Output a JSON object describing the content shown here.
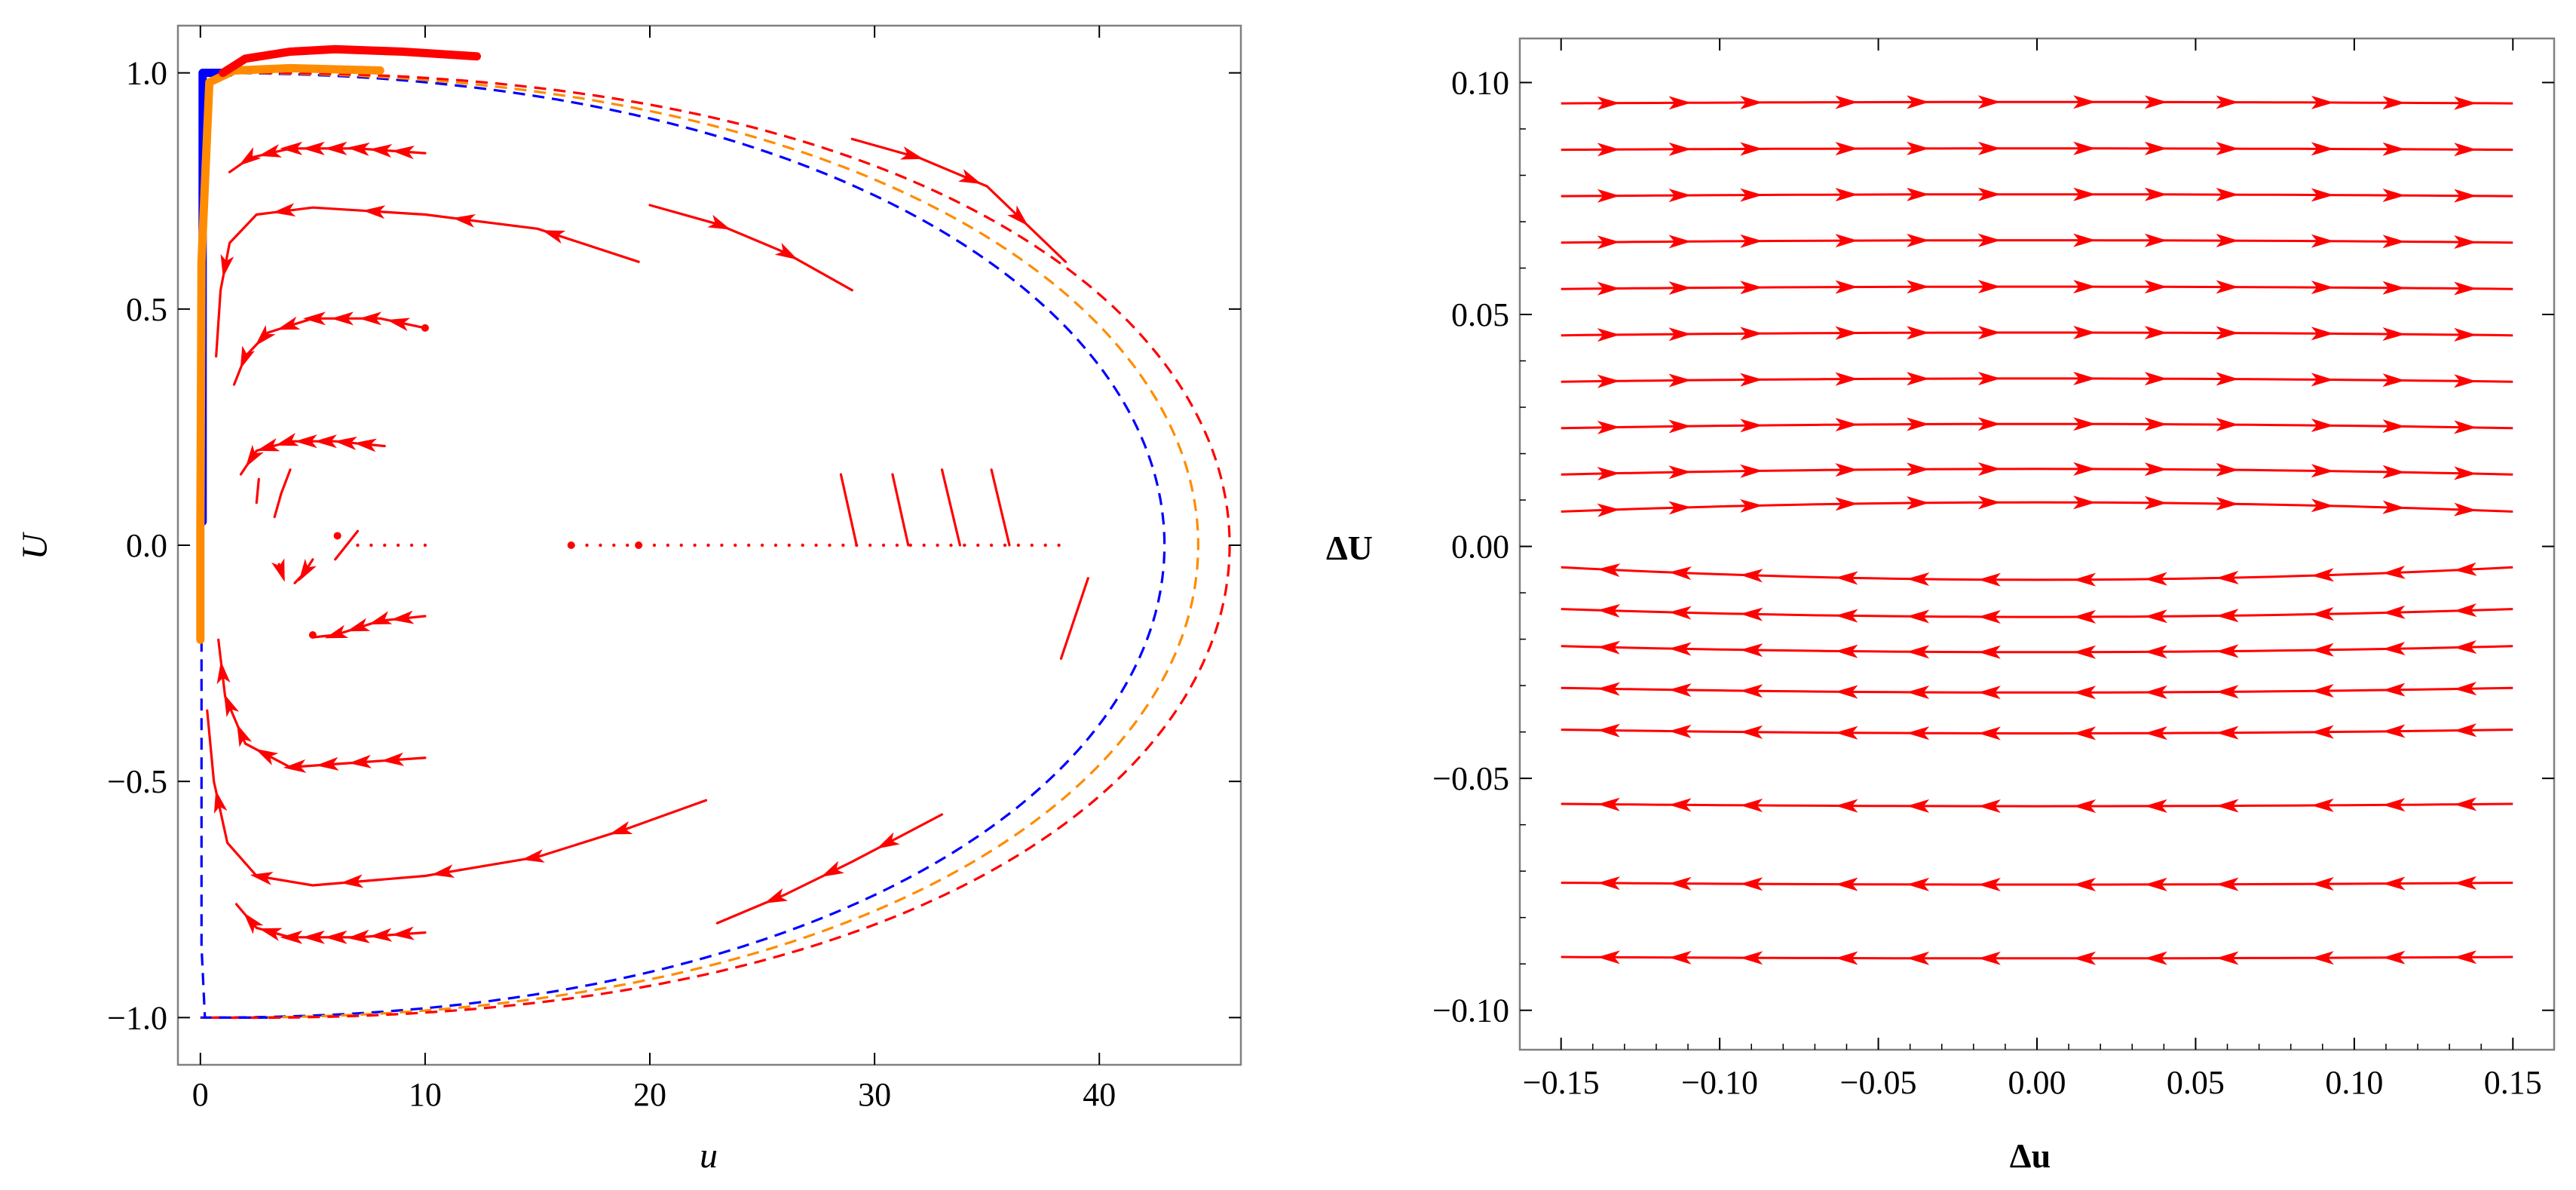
{
  "colors": {
    "trajectory": "#ff0000",
    "blue_boundary": "#0000ff",
    "orange_boundary": "#ff8c00",
    "frame": "#808080",
    "background": "#ffffff"
  },
  "chart_data": [
    {
      "id": "left",
      "type": "line",
      "title": "",
      "xlabel": "u",
      "ylabel": "U",
      "xlim": [
        -1,
        46.3
      ],
      "ylim": [
        -1.1,
        1.1
      ],
      "xticks": [
        0,
        10,
        20,
        30,
        40
      ],
      "xtick_labels": [
        "0",
        "10",
        "20",
        "30",
        "40"
      ],
      "yticks": [
        -1.0,
        -0.5,
        0.0,
        0.5,
        1.0
      ],
      "ytick_labels": [
        "−1.0",
        "−0.5",
        "0.0",
        "0.5",
        "1.0"
      ],
      "dashed_boundaries": [
        {
          "name": "blue",
          "color": "#0000ff",
          "u_max": 42.9,
          "dip": 0.0
        },
        {
          "name": "orange",
          "color": "#ff8c00",
          "u_max": 44.4,
          "dip": 0.025
        },
        {
          "name": "red",
          "color": "#ff0000",
          "u_max": 45.8,
          "dip": 0.05
        }
      ],
      "thick_curves": [
        {
          "name": "blue-vertical",
          "color": "#0000ff",
          "points": [
            [
              0.1,
              0.05
            ],
            [
              0.1,
              1.0
            ],
            [
              1.3,
              1.0
            ]
          ]
        },
        {
          "name": "orange-edge",
          "color": "#ff8c00",
          "points": [
            [
              0.0,
              -0.2
            ],
            [
              0.0,
              0.03
            ],
            [
              0.05,
              0.6
            ],
            [
              0.4,
              0.98
            ],
            [
              1.5,
              1.005
            ],
            [
              4,
              1.01
            ],
            [
              8,
              1.005
            ]
          ]
        },
        {
          "name": "red-top",
          "color": "#ff0000",
          "points": [
            [
              1,
              1.0
            ],
            [
              2,
              1.03
            ],
            [
              4,
              1.045
            ],
            [
              6,
              1.05
            ],
            [
              9,
              1.045
            ],
            [
              12.3,
              1.035
            ]
          ]
        }
      ],
      "trajectories": [
        {
          "points": [
            [
              10,
              0.83
            ],
            [
              7,
              0.84
            ],
            [
              4,
              0.84
            ],
            [
              2.2,
              0.82
            ],
            [
              1.3,
              0.79
            ]
          ],
          "arrows": 8
        },
        {
          "points": [
            [
              19.5,
              0.6
            ],
            [
              15,
              0.67
            ],
            [
              10,
              0.7
            ],
            [
              5,
              0.715
            ],
            [
              2.5,
              0.7
            ],
            [
              1.3,
              0.64
            ],
            [
              0.9,
              0.54
            ],
            [
              0.7,
              0.4
            ]
          ],
          "arrows": 5
        },
        {
          "points": [
            [
              20,
              0.72
            ],
            [
              23,
              0.68
            ],
            [
              26,
              0.62
            ],
            [
              29,
              0.54
            ]
          ],
          "arrows": 2
        },
        {
          "points": [
            [
              29,
              0.86
            ],
            [
              32,
              0.82
            ],
            [
              35,
              0.76
            ],
            [
              38.5,
              0.6
            ]
          ],
          "arrows": 3
        },
        {
          "points": [
            [
              10,
              0.46
            ],
            [
              8,
              0.48
            ],
            [
              5,
              0.48
            ],
            [
              3,
              0.45
            ],
            [
              2,
              0.4
            ],
            [
              1.5,
              0.34
            ]
          ],
          "arrows": 7
        },
        {
          "points": [
            [
              8.2,
              0.21
            ],
            [
              6,
              0.22
            ],
            [
              4,
              0.22
            ],
            [
              2.5,
              0.2
            ],
            [
              1.8,
              0.15
            ]
          ],
          "arrows": 7
        },
        {
          "points": [
            [
              10,
              -0.15
            ],
            [
              8,
              -0.16
            ],
            [
              6,
              -0.19
            ],
            [
              5,
              -0.195
            ]
          ],
          "arrows": 4
        },
        {
          "points": [
            [
              10,
              -0.45
            ],
            [
              7,
              -0.46
            ],
            [
              4,
              -0.47
            ],
            [
              2,
              -0.42
            ],
            [
              1.1,
              -0.32
            ],
            [
              0.8,
              -0.2
            ]
          ],
          "arrows": 8
        },
        {
          "points": [
            [
              22.5,
              -0.54
            ],
            [
              19,
              -0.6
            ],
            [
              15,
              -0.66
            ],
            [
              10,
              -0.7
            ],
            [
              5,
              -0.72
            ],
            [
              2.5,
              -0.7
            ],
            [
              1.2,
              -0.63
            ],
            [
              0.6,
              -0.5
            ],
            [
              0.3,
              -0.35
            ]
          ],
          "arrows": 6
        },
        {
          "points": [
            [
              33,
              -0.57
            ],
            [
              29,
              -0.67
            ],
            [
              26,
              -0.74
            ],
            [
              23,
              -0.8
            ]
          ],
          "arrows": 3
        },
        {
          "points": [
            [
              10,
              -0.82
            ],
            [
              7,
              -0.83
            ],
            [
              4,
              -0.83
            ],
            [
              2.5,
              -0.81
            ],
            [
              1.6,
              -0.76
            ]
          ],
          "arrows": 8
        },
        {
          "points": [
            [
              4,
              0.16
            ],
            [
              3.6,
              0.11
            ],
            [
              3.3,
              0.06
            ]
          ],
          "arrows": 0
        },
        {
          "points": [
            [
              2.6,
              0.14
            ],
            [
              2.5,
              0.09
            ]
          ],
          "arrows": 0
        },
        {
          "points": [
            [
              5,
              -0.03
            ],
            [
              4.6,
              -0.06
            ],
            [
              4.2,
              -0.08
            ]
          ],
          "arrows": 1
        },
        {
          "points": [
            [
              3.5,
              -0.04
            ],
            [
              3.7,
              -0.07
            ]
          ],
          "arrows": 1
        },
        {
          "points": [
            [
              7,
              0.03
            ],
            [
              6.5,
              0.0
            ],
            [
              6,
              -0.03
            ]
          ],
          "arrows": 0
        },
        {
          "points": [
            [
              28.5,
              0.15
            ],
            [
              29.2,
              0.0
            ]
          ],
          "arrows": 0
        },
        {
          "points": [
            [
              30.8,
              0.15
            ],
            [
              31.5,
              0.0
            ]
          ],
          "arrows": 0
        },
        {
          "points": [
            [
              33,
              0.16
            ],
            [
              33.8,
              0.0
            ]
          ],
          "arrows": 0
        },
        {
          "points": [
            [
              35.2,
              0.16
            ],
            [
              36,
              0.0
            ]
          ],
          "arrows": 0
        },
        {
          "points": [
            [
              39.5,
              -0.07
            ],
            [
              38.3,
              -0.24
            ]
          ],
          "arrows": 0
        }
      ],
      "dots": [
        [
          6.1,
          0.02
        ],
        [
          5,
          -0.19
        ],
        [
          10,
          0.46
        ],
        [
          16.5,
          0.0
        ],
        [
          19.5,
          0.0
        ]
      ],
      "dotted_row": {
        "u_start": 7,
        "u_end": 38.5,
        "U": 0.0
      }
    },
    {
      "id": "right",
      "type": "line",
      "title": "",
      "xlabel": "Δu",
      "ylabel": "ΔU",
      "xlim": [
        -0.163,
        0.163
      ],
      "ylim": [
        -0.1085,
        0.1095
      ],
      "xticks": [
        -0.15,
        -0.1,
        -0.05,
        0.0,
        0.05,
        0.1,
        0.15
      ],
      "xtick_labels": [
        "−0.15",
        "−0.10",
        "−0.05",
        "0.00",
        "0.05",
        "0.10",
        "0.15"
      ],
      "yticks": [
        -0.1,
        -0.05,
        0.0,
        0.05,
        0.1
      ],
      "ytick_labels": [
        "−0.10",
        "−0.05",
        "0.00",
        "0.05",
        "0.10"
      ],
      "x_range": [
        -0.15,
        0.15
      ],
      "arrows_per_line": 12,
      "streamlines": [
        {
          "y_left": 0.0955,
          "y_mid": 0.0958,
          "y_right": 0.0955,
          "direction": "right"
        },
        {
          "y_left": 0.0855,
          "y_mid": 0.0858,
          "y_right": 0.0855,
          "direction": "right"
        },
        {
          "y_left": 0.0755,
          "y_mid": 0.0759,
          "y_right": 0.0755,
          "direction": "right"
        },
        {
          "y_left": 0.0655,
          "y_mid": 0.066,
          "y_right": 0.0655,
          "direction": "right"
        },
        {
          "y_left": 0.0555,
          "y_mid": 0.056,
          "y_right": 0.0555,
          "direction": "right"
        },
        {
          "y_left": 0.0455,
          "y_mid": 0.0461,
          "y_right": 0.0455,
          "direction": "right"
        },
        {
          "y_left": 0.0355,
          "y_mid": 0.0362,
          "y_right": 0.0355,
          "direction": "right"
        },
        {
          "y_left": 0.0255,
          "y_mid": 0.0264,
          "y_right": 0.0255,
          "direction": "right"
        },
        {
          "y_left": 0.0155,
          "y_mid": 0.0167,
          "y_right": 0.0155,
          "direction": "right"
        },
        {
          "y_left": 0.0075,
          "y_mid": 0.0095,
          "y_right": 0.0075,
          "direction": "right"
        },
        {
          "y_left": -0.0045,
          "y_mid": -0.0072,
          "y_right": -0.0045,
          "direction": "left"
        },
        {
          "y_left": -0.0135,
          "y_mid": -0.0152,
          "y_right": -0.0135,
          "direction": "left"
        },
        {
          "y_left": -0.0215,
          "y_mid": -0.0228,
          "y_right": -0.0215,
          "direction": "left"
        },
        {
          "y_left": -0.0305,
          "y_mid": -0.0315,
          "y_right": -0.0305,
          "direction": "left"
        },
        {
          "y_left": -0.0395,
          "y_mid": -0.0403,
          "y_right": -0.0395,
          "direction": "left"
        },
        {
          "y_left": -0.0555,
          "y_mid": -0.056,
          "y_right": -0.0555,
          "direction": "left"
        },
        {
          "y_left": -0.0725,
          "y_mid": -0.0729,
          "y_right": -0.0725,
          "direction": "left"
        },
        {
          "y_left": -0.0885,
          "y_mid": -0.0888,
          "y_right": -0.0885,
          "direction": "left"
        }
      ]
    }
  ]
}
